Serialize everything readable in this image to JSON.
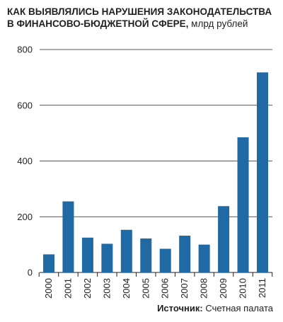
{
  "chart_data": {
    "type": "bar",
    "title_line1": "КАК ВЫЯВЛЯЛИСЬ НАРУШЕНИЯ ЗАКОНОДАТЕЛЬСТВА",
    "title_line2": "В ФИНАНСОВО-БЮДЖЕТНОЙ СФЕРЕ,",
    "unit": "млрд рублей",
    "categories": [
      "2000",
      "2001",
      "2002",
      "2003",
      "2004",
      "2005",
      "2006",
      "2007",
      "2008",
      "2009",
      "2010",
      "2011"
    ],
    "values": [
      65,
      255,
      125,
      103,
      153,
      122,
      85,
      132,
      100,
      238,
      485,
      718
    ],
    "ylim": [
      0,
      800
    ],
    "yticks": [
      "0",
      "200",
      "400",
      "600",
      "800"
    ],
    "grid": true,
    "bar_color": "#1f6aa5",
    "source_label": "Источник:",
    "source_text": "Счетная палата"
  }
}
